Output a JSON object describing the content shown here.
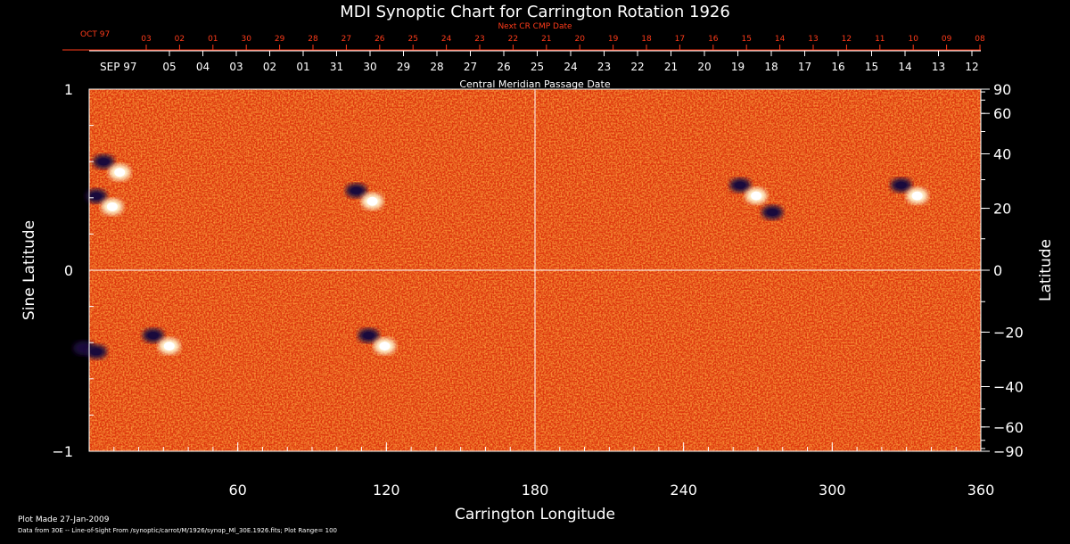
{
  "chart_data": {
    "type": "heatmap",
    "title": "MDI Synoptic Chart for Carrington Rotation 1926",
    "xlabel": "Carrington Longitude",
    "ylabel_left": "Sine Latitude",
    "ylabel_right": "Latitude",
    "xlim": [
      0,
      360
    ],
    "ylim": [
      -1,
      1
    ],
    "x_ticks": [
      60,
      120,
      180,
      240,
      300,
      360
    ],
    "y_ticks_left": [
      {
        "value": 1,
        "label": "1"
      },
      {
        "value": 0,
        "label": "0"
      },
      {
        "value": -1,
        "label": "−1"
      }
    ],
    "y_ticks_right": [
      {
        "lat": 90,
        "label": "90"
      },
      {
        "lat": 60,
        "label": "60"
      },
      {
        "lat": 40,
        "label": "40"
      },
      {
        "lat": 20,
        "label": "20"
      },
      {
        "lat": 0,
        "label": "0"
      },
      {
        "lat": -20,
        "label": "−20"
      },
      {
        "lat": -40,
        "label": "−40"
      },
      {
        "lat": -60,
        "label": "−60"
      },
      {
        "lat": -90,
        "label": "−90"
      }
    ],
    "top_axis_cmp": {
      "label": "Central Meridian Passage Date",
      "month_label": "SEP 97",
      "dates": [
        "05",
        "04",
        "03",
        "02",
        "01",
        "31",
        "30",
        "29",
        "28",
        "27",
        "26",
        "25",
        "24",
        "23",
        "22",
        "21",
        "20",
        "19",
        "18",
        "17",
        "16",
        "15",
        "14",
        "13",
        "12"
      ]
    },
    "top_axis_next": {
      "label": "Next CR CMP Date",
      "month_label": "OCT 97",
      "dates": [
        "03",
        "02",
        "01",
        "30",
        "29",
        "28",
        "27",
        "26",
        "25",
        "24",
        "23",
        "22",
        "21",
        "20",
        "19",
        "18",
        "17",
        "16",
        "15",
        "14",
        "13",
        "12",
        "11",
        "10",
        "09",
        "08"
      ]
    },
    "active_regions": [
      {
        "lon": 8,
        "sinlat": 0.58,
        "pair": true
      },
      {
        "lon": 5,
        "sinlat": 0.39,
        "pair": true
      },
      {
        "lon": 110,
        "sinlat": 0.42,
        "pair": true
      },
      {
        "lon": 28,
        "sinlat": -0.38,
        "pair": true
      },
      {
        "lon": 115,
        "sinlat": -0.38,
        "pair": true
      },
      {
        "lon": 265,
        "sinlat": 0.45,
        "pair": true
      },
      {
        "lon": 330,
        "sinlat": 0.45,
        "pair": true
      },
      {
        "lon": 278,
        "sinlat": 0.3,
        "pair": false
      },
      {
        "lon": 0,
        "sinlat": -0.45,
        "pair": false
      },
      {
        "lon": 5,
        "sinlat": -0.47,
        "pair": false
      }
    ],
    "colors": {
      "background": "#ff5a14",
      "dark": "#1a0a3c",
      "bright": "#fff4d0",
      "grid": "#ffffff"
    },
    "grid": true
  },
  "footer": {
    "plot_made": "Plot Made 27-Jan-2009",
    "data_source": "Data from 30E -- Line-of-Sight From /synoptic/carrot/M/1926/synop_Ml_30E.1926.fits; Plot Range= 100"
  }
}
